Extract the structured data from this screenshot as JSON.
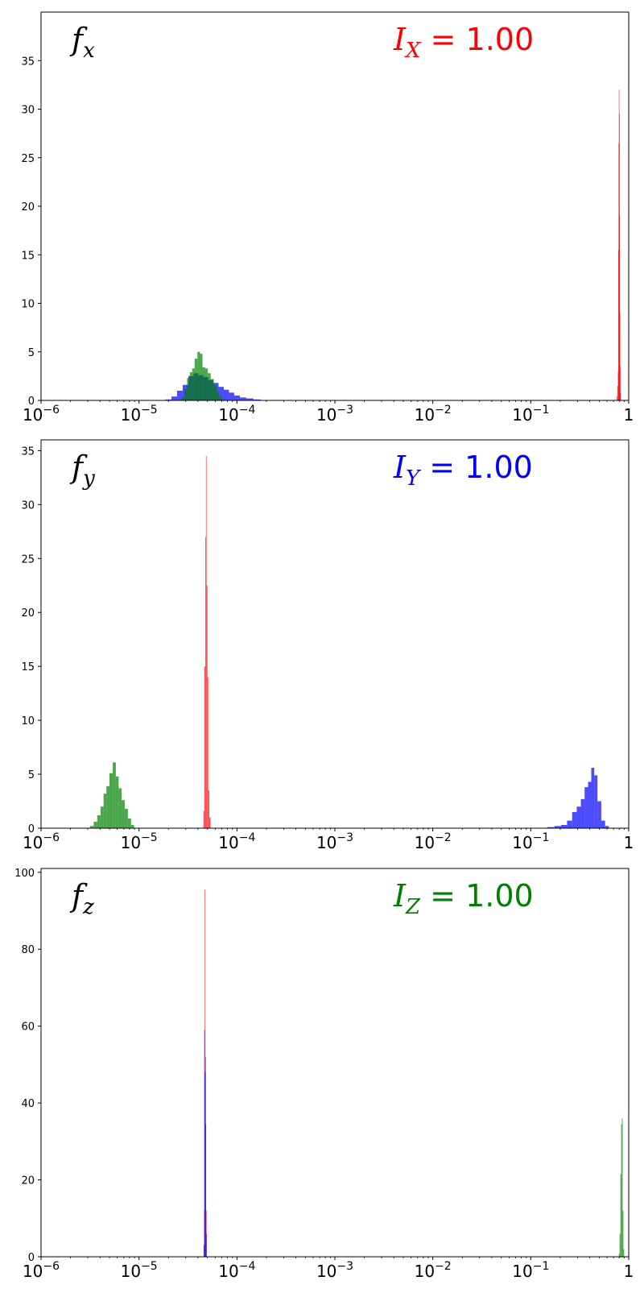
{
  "colors": {
    "red": "#ff0000",
    "blue": "#0000ff",
    "green": "#008000"
  },
  "chart_data": [
    {
      "type": "histogram",
      "panel_label": {
        "base": "f",
        "sub": "x"
      },
      "annotation": {
        "base": "I",
        "sub": "X",
        "eq": " = 1.00",
        "color": "#ff0000"
      },
      "x_scale": "log",
      "xlim": [
        1e-06,
        1
      ],
      "x_ticks": [
        {
          "base": "10",
          "exp": "−6"
        },
        {
          "base": "10",
          "exp": "−5"
        },
        {
          "base": "10",
          "exp": "−4"
        },
        {
          "base": "10",
          "exp": "−3"
        },
        {
          "base": "10",
          "exp": "−2"
        },
        {
          "base": "10",
          "exp": "−1"
        },
        {
          "base": "1",
          "exp": ""
        }
      ],
      "ylim": [
        0,
        40
      ],
      "y_ticks": [
        "0",
        "5",
        "10",
        "15",
        "20",
        "25",
        "30",
        "35"
      ],
      "series": [
        {
          "color": "#0000ff",
          "alpha": 0.7,
          "bins": [
            [
              2e-05,
              0.1
            ],
            [
              2.3e-05,
              0.4
            ],
            [
              2.6e-05,
              1.0
            ],
            [
              3e-05,
              1.6
            ],
            [
              3.4e-05,
              2.5
            ],
            [
              3.8e-05,
              2.8
            ],
            [
              4.3e-05,
              2.6
            ],
            [
              4.8e-05,
              2.4
            ],
            [
              5.4e-05,
              2.1
            ],
            [
              6.1e-05,
              1.8
            ],
            [
              6.9e-05,
              1.4
            ],
            [
              7.8e-05,
              1.1
            ],
            [
              8.8e-05,
              0.8
            ],
            [
              0.0001,
              0.5
            ],
            [
              0.000115,
              0.3
            ],
            [
              0.000135,
              0.2
            ],
            [
              0.00016,
              0.1
            ]
          ]
        },
        {
          "color": "#008000",
          "alpha": 0.7,
          "bins": [
            [
              2.8e-05,
              0.3
            ],
            [
              3e-05,
              1.2
            ],
            [
              3.2e-05,
              2.3
            ],
            [
              3.4e-05,
              2.9
            ],
            [
              3.6e-05,
              3.3
            ],
            [
              3.8e-05,
              4.3
            ],
            [
              4.1e-05,
              5.0
            ],
            [
              4.3e-05,
              4.8
            ],
            [
              4.6e-05,
              3.4
            ],
            [
              4.9e-05,
              3.3
            ],
            [
              5.2e-05,
              2.8
            ],
            [
              5.6e-05,
              2.2
            ],
            [
              6e-05,
              1.6
            ],
            [
              6.4e-05,
              0.9
            ],
            [
              6.8e-05,
              0.4
            ]
          ]
        },
        {
          "color": "#ff0000",
          "alpha": 0.7,
          "bins": [
            [
              0.76,
              0.4
            ],
            [
              0.77,
              1.5
            ],
            [
              0.78,
              3.0
            ],
            [
              0.785,
              15.5
            ],
            [
              0.79,
              26.5
            ],
            [
              0.795,
              32.0
            ],
            [
              0.8,
              29.5
            ],
            [
              0.805,
              19.0
            ],
            [
              0.81,
              9.0
            ],
            [
              0.815,
              3.5
            ],
            [
              0.82,
              0.8
            ]
          ]
        }
      ]
    },
    {
      "type": "histogram",
      "panel_label": {
        "base": "f",
        "sub": "y"
      },
      "annotation": {
        "base": "I",
        "sub": "Y",
        "eq": " = 1.00",
        "color": "#0000ff"
      },
      "x_scale": "log",
      "xlim": [
        1e-06,
        1
      ],
      "x_ticks": [
        {
          "base": "10",
          "exp": "−6"
        },
        {
          "base": "10",
          "exp": "−5"
        },
        {
          "base": "10",
          "exp": "−4"
        },
        {
          "base": "10",
          "exp": "−3"
        },
        {
          "base": "10",
          "exp": "−2"
        },
        {
          "base": "10",
          "exp": "−1"
        },
        {
          "base": "1",
          "exp": ""
        }
      ],
      "ylim": [
        0,
        36
      ],
      "y_ticks": [
        "0",
        "5",
        "10",
        "15",
        "20",
        "25",
        "30",
        "35"
      ],
      "series": [
        {
          "color": "#008000",
          "alpha": 0.7,
          "bins": [
            [
              3.3e-06,
              0.2
            ],
            [
              3.6e-06,
              0.6
            ],
            [
              3.9e-06,
              1.2
            ],
            [
              4.2e-06,
              2.0
            ],
            [
              4.5e-06,
              3.2
            ],
            [
              4.8e-06,
              3.9
            ],
            [
              5.2e-06,
              5.1
            ],
            [
              5.6e-06,
              6.1
            ],
            [
              6e-06,
              4.8
            ],
            [
              6.4e-06,
              3.7
            ],
            [
              6.9e-06,
              2.6
            ],
            [
              7.4e-06,
              1.8
            ],
            [
              8e-06,
              0.9
            ],
            [
              8.6e-06,
              0.3
            ]
          ]
        },
        {
          "color": "#ff0000",
          "alpha": 0.7,
          "bins": [
            [
              4.6e-05,
              1.6
            ],
            [
              4.7e-05,
              15.0
            ],
            [
              4.8e-05,
              27.0
            ],
            [
              4.85e-05,
              34.5
            ],
            [
              4.95e-05,
              22.5
            ],
            [
              5.05e-05,
              14.0
            ],
            [
              5.15e-05,
              3.5
            ],
            [
              5.3e-05,
              1.0
            ]
          ]
        },
        {
          "color": "#0000ff",
          "alpha": 0.7,
          "bins": [
            [
              0.16,
              0.1
            ],
            [
              0.19,
              0.2
            ],
            [
              0.22,
              0.3
            ],
            [
              0.25,
              0.7
            ],
            [
              0.28,
              1.5
            ],
            [
              0.31,
              2.0
            ],
            [
              0.34,
              2.7
            ],
            [
              0.37,
              3.8
            ],
            [
              0.4,
              4.3
            ],
            [
              0.43,
              5.6
            ],
            [
              0.46,
              4.9
            ],
            [
              0.5,
              2.5
            ],
            [
              0.55,
              0.7
            ],
            [
              0.6,
              0.2
            ]
          ]
        }
      ]
    },
    {
      "type": "histogram",
      "panel_label": {
        "base": "f",
        "sub": "z"
      },
      "annotation": {
        "base": "I",
        "sub": "Z",
        "eq": " = 1.00",
        "color": "#008000"
      },
      "x_scale": "log",
      "xlim": [
        1e-06,
        1
      ],
      "x_ticks": [
        {
          "base": "10",
          "exp": "−6"
        },
        {
          "base": "10",
          "exp": "−5"
        },
        {
          "base": "10",
          "exp": "−4"
        },
        {
          "base": "10",
          "exp": "−3"
        },
        {
          "base": "10",
          "exp": "−2"
        },
        {
          "base": "10",
          "exp": "−1"
        },
        {
          "base": "1",
          "exp": ""
        }
      ],
      "ylim": [
        0,
        101
      ],
      "y_ticks": [
        "0",
        "20",
        "40",
        "60",
        "80",
        "100"
      ],
      "series": [
        {
          "color": "#ff0000",
          "alpha": 0.7,
          "bins": [
            [
              4.65e-05,
              12.0
            ],
            [
              4.72e-05,
              95.5
            ],
            [
              4.79e-05,
              52.0
            ],
            [
              4.86e-05,
              12.0
            ]
          ]
        },
        {
          "color": "#0000ff",
          "alpha": 0.7,
          "bins": [
            [
              4.6e-05,
              3.0
            ],
            [
              4.67e-05,
              59.0
            ],
            [
              4.74e-05,
              48.0
            ],
            [
              4.81e-05,
              34.5
            ],
            [
              4.88e-05,
              6.0
            ]
          ]
        },
        {
          "color": "#008000",
          "alpha": 0.7,
          "bins": [
            [
              0.8,
              0.8
            ],
            [
              0.815,
              6.0
            ],
            [
              0.83,
              21.5
            ],
            [
              0.845,
              34.5
            ],
            [
              0.86,
              36.0
            ],
            [
              0.875,
              12.0
            ],
            [
              0.89,
              2.0
            ]
          ]
        }
      ]
    }
  ]
}
